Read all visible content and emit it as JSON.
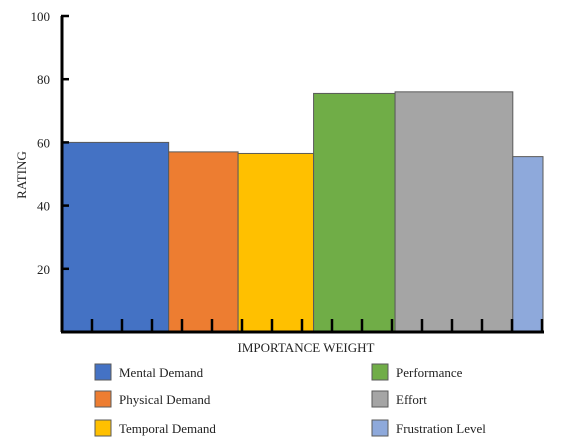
{
  "chart_data": {
    "type": "bar",
    "title": "",
    "xlabel": "IMPORTANCE WEIGHT",
    "ylabel": "RATING",
    "ylim": [
      0,
      100
    ],
    "yticks": [
      20,
      40,
      60,
      80,
      100
    ],
    "bar_width_unit": "importance weight",
    "series": [
      {
        "name": "Mental Demand",
        "value": 60,
        "weight": 3.5,
        "color": "#4472C4"
      },
      {
        "name": "Physical Demand",
        "value": 57,
        "weight": 2.3,
        "color": "#ED7D31"
      },
      {
        "name": "Temporal Demand",
        "value": 56.5,
        "weight": 2.5,
        "color": "#FFC000"
      },
      {
        "name": "Performance",
        "value": 75.5,
        "weight": 2.7,
        "color": "#70AD47"
      },
      {
        "name": "Effort",
        "value": 76,
        "weight": 3.9,
        "color": "#A5A5A5"
      },
      {
        "name": "Frustration Level",
        "value": 55.5,
        "weight": 1.0,
        "color": "#8EA9DB"
      }
    ],
    "legend_position": "bottom",
    "grid": false
  }
}
